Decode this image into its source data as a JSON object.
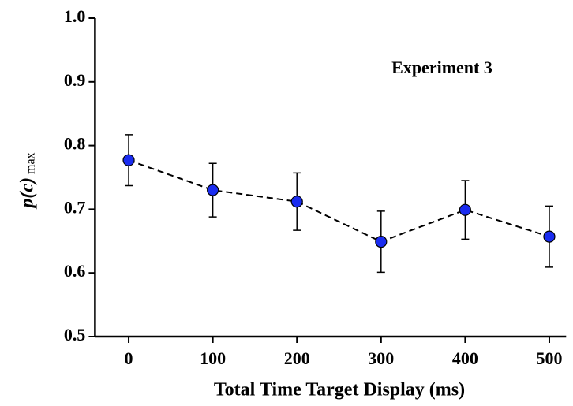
{
  "chart_data": {
    "type": "line",
    "annotation": "Experiment 3",
    "x_label": "Total Time Target Display (ms)",
    "y_label": "p(c)",
    "y_label_sub": "max",
    "x": [
      0,
      100,
      200,
      300,
      400,
      500
    ],
    "series": [
      {
        "color": "#1a2cf0",
        "values": [
          0.777,
          0.73,
          0.712,
          0.649,
          0.699,
          0.657
        ],
        "errors": [
          0.04,
          0.042,
          0.045,
          0.048,
          0.046,
          0.048
        ]
      }
    ],
    "xlim": [
      -40,
      520
    ],
    "xticks": [
      0,
      100,
      200,
      300,
      400,
      500
    ],
    "ylim": [
      0.5,
      1.0
    ],
    "yticks": [
      {
        "value": 0.5,
        "label": "0.5"
      },
      0.6,
      0.7,
      0.8,
      0.9,
      {
        "value": 1.0,
        "label": "1.0"
      }
    ],
    "line_style": "dashed"
  }
}
